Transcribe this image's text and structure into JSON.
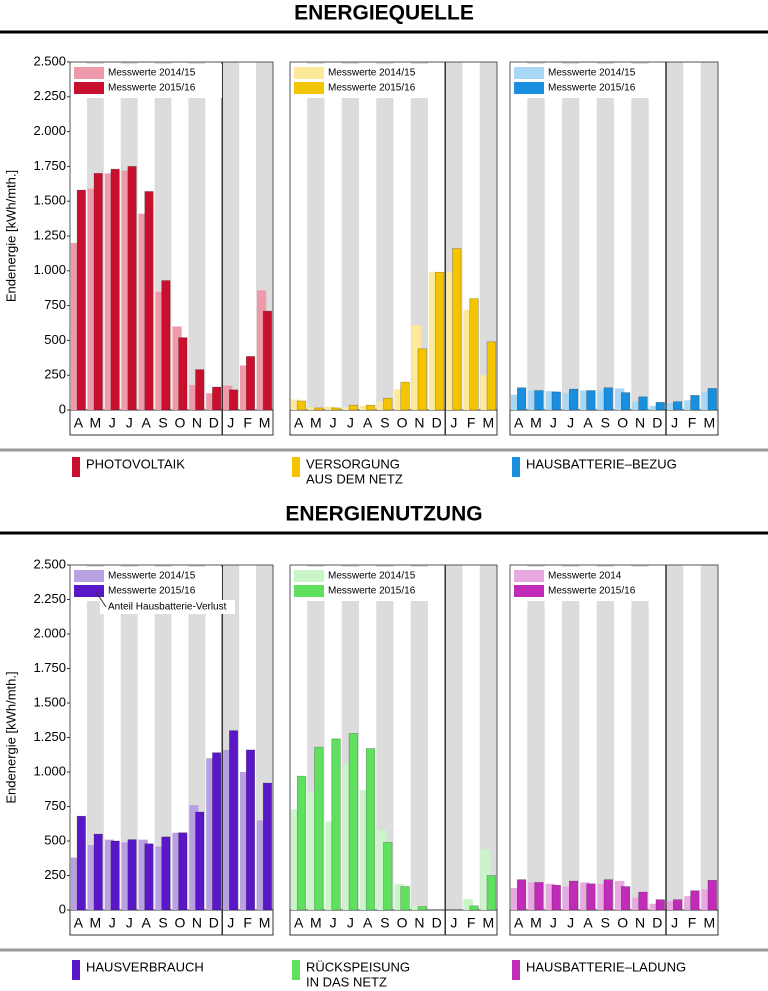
{
  "sections": [
    {
      "title": "ENERGIEQUELLE",
      "charts": [
        {
          "type": "bar",
          "ylabel": "Endenergie [kWh/mth.]",
          "categories": [
            "A",
            "M",
            "J",
            "J",
            "A",
            "S",
            "O",
            "N",
            "D",
            "J",
            "F",
            "M"
          ],
          "ylim": [
            0,
            2500
          ],
          "yticks": [
            0,
            250,
            500,
            750,
            {
              "value": 1000,
              "label": "1.000"
            },
            {
              "value": 1250,
              "label": "1.250"
            },
            {
              "value": 1500,
              "label": "1.500"
            },
            {
              "value": 1750,
              "label": "1.750"
            },
            {
              "value": 2000,
              "label": "2.000"
            },
            {
              "value": 2250,
              "label": "2.250"
            },
            {
              "value": 2500,
              "label": "2.500"
            }
          ],
          "series": [
            {
              "name": "Messwerte 2014/15",
              "color": "#ef9aaa",
              "values": [
                1200,
                1590,
                1700,
                1720,
                1410,
                850,
                600,
                180,
                120,
                175,
                320,
                860
              ]
            },
            {
              "name": "Messwerte 2015/16",
              "color": "#c8102e",
              "values": [
                1580,
                1700,
                1730,
                1750,
                1570,
                930,
                520,
                290,
                165,
                145,
                385,
                710
              ]
            }
          ],
          "label": [
            "PHOTOVOLTAIK"
          ]
        },
        {
          "type": "bar",
          "categories": [
            "A",
            "M",
            "J",
            "J",
            "A",
            "S",
            "O",
            "N",
            "D",
            "J",
            "F",
            "M"
          ],
          "ylim": [
            0,
            2500
          ],
          "series": [
            {
              "name": "Messwerte 2014/15",
              "color": "#fde99a",
              "values": [
                75,
                20,
                25,
                20,
                30,
                60,
                150,
                610,
                990,
                990,
                720,
                250
              ]
            },
            {
              "name": "Messwerte 2015/16",
              "color": "#f5c400",
              "values": [
                65,
                15,
                15,
                35,
                35,
                85,
                200,
                440,
                990,
                1160,
                800,
                490
              ]
            }
          ],
          "label": [
            "VERSORGUNG",
            "AUS DEM NETZ"
          ]
        },
        {
          "type": "bar",
          "categories": [
            "A",
            "M",
            "J",
            "J",
            "A",
            "S",
            "O",
            "N",
            "D",
            "J",
            "F",
            "M"
          ],
          "ylim": [
            0,
            2500
          ],
          "series": [
            {
              "name": "Messwerte 2014/15",
              "color": "#a8d8f5",
              "values": [
                110,
                140,
                135,
                120,
                140,
                140,
                155,
                60,
                30,
                50,
                70,
                130
              ]
            },
            {
              "name": "Messwerte 2015/16",
              "color": "#1a8fe0",
              "values": [
                160,
                140,
                130,
                150,
                140,
                160,
                125,
                95,
                55,
                60,
                105,
                155
              ]
            }
          ],
          "label": [
            "HAUSBATTERIE–BEZUG"
          ]
        }
      ]
    },
    {
      "title": "ENERGIENUTZUNG",
      "charts": [
        {
          "type": "bar",
          "ylabel": "Endenergie [kWh/mth.]",
          "categories": [
            "A",
            "M",
            "J",
            "J",
            "A",
            "S",
            "O",
            "N",
            "D",
            "J",
            "F",
            "M"
          ],
          "ylim": [
            0,
            2500
          ],
          "yticks": [
            0,
            250,
            500,
            750,
            {
              "value": 1000,
              "label": "1.000"
            },
            {
              "value": 1250,
              "label": "1.250"
            },
            {
              "value": 1500,
              "label": "1.500"
            },
            {
              "value": 1750,
              "label": "1.750"
            },
            {
              "value": 2000,
              "label": "2.000"
            },
            {
              "value": 2250,
              "label": "2.250"
            },
            {
              "value": 2500,
              "label": "2.500"
            }
          ],
          "series": [
            {
              "name": "Messwerte 2014/15",
              "color": "#b9a0e0",
              "values": [
                380,
                470,
                510,
                490,
                510,
                460,
                560,
                760,
                1100,
                1160,
                1000,
                650
              ]
            },
            {
              "name": "Messwerte 2015/16",
              "color": "#5a17c8",
              "values": [
                680,
                550,
                500,
                510,
                480,
                530,
                560,
                710,
                1140,
                1300,
                1160,
                920
              ]
            }
          ],
          "annotation": "Anteil Hausbatterie-Verlust",
          "label": [
            "HAUSVERBRAUCH"
          ]
        },
        {
          "type": "bar",
          "categories": [
            "A",
            "M",
            "J",
            "J",
            "A",
            "S",
            "O",
            "N",
            "D",
            "J",
            "F",
            "M"
          ],
          "ylim": [
            0,
            2500
          ],
          "series": [
            {
              "name": "Messwerte 2014/15",
              "color": "#c9f5c9",
              "values": [
                730,
                860,
                640,
                1060,
                870,
                580,
                190,
                30,
                0,
                0,
                80,
                440
              ]
            },
            {
              "name": "Messwerte 2015/16",
              "color": "#5fe05f",
              "values": [
                970,
                1180,
                1240,
                1280,
                1170,
                490,
                170,
                25,
                0,
                0,
                30,
                250
              ]
            }
          ],
          "label": [
            "RÜCKSPEISUNG",
            "IN DAS NETZ"
          ]
        },
        {
          "type": "bar",
          "categories": [
            "A",
            "M",
            "J",
            "J",
            "A",
            "S",
            "O",
            "N",
            "D",
            "J",
            "F",
            "M"
          ],
          "ylim": [
            0,
            2500
          ],
          "series": [
            {
              "name": "Messwerte 2014",
              "color": "#e8a8e0",
              "values": [
                160,
                200,
                190,
                170,
                200,
                190,
                210,
                90,
                45,
                65,
                100,
                150
              ]
            },
            {
              "name": "Messwerte 2015/16",
              "color": "#c02cb8",
              "values": [
                220,
                200,
                180,
                210,
                190,
                220,
                170,
                130,
                75,
                75,
                140,
                215
              ]
            }
          ],
          "label": [
            "HAUSBATTERIE–LADUNG"
          ]
        }
      ]
    }
  ]
}
